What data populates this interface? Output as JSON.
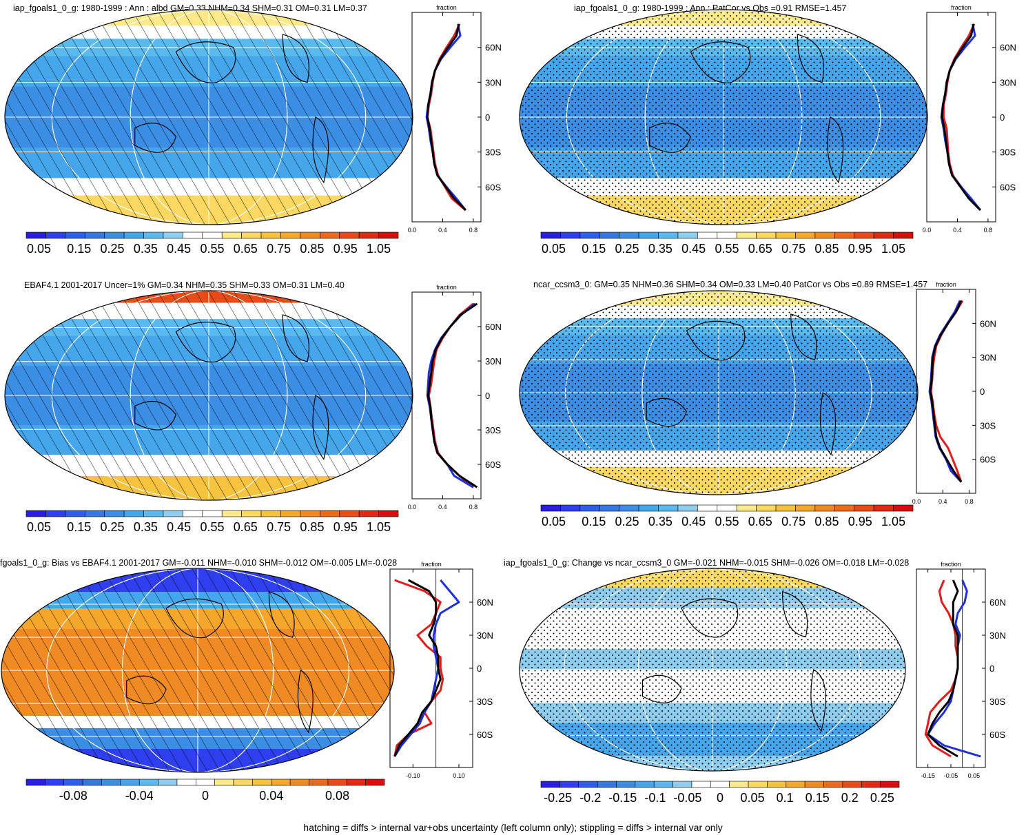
{
  "footnote": "hatching = diffs > internal var+obs uncertainty (left column only); stippling = diffs > internal var only",
  "colors": {
    "abs_scale": [
      "#2a1fe0",
      "#2f3ff0",
      "#2f5fe8",
      "#3677e0",
      "#3b8ee4",
      "#46a6ec",
      "#5ab9ee",
      "#8fcdee",
      "#ffffff",
      "#ffffff",
      "#fde98a",
      "#fbd861",
      "#f6c33f",
      "#f4a72b",
      "#f08a22",
      "#eb6a1c",
      "#e84a18",
      "#e02a14",
      "#d4100f"
    ],
    "diff_scale": [
      "#2a1fe0",
      "#2f3ff0",
      "#2f5fe8",
      "#3677e0",
      "#3b8ee4",
      "#46a6ec",
      "#5ab9ee",
      "#8fcdee",
      "#ffffff",
      "#ffffff",
      "#fde98a",
      "#fbd861",
      "#f6c33f",
      "#f4a72b",
      "#f08a22",
      "#eb6a1c",
      "#e84a18",
      "#e02a14",
      "#d4100f"
    ],
    "line_red": "#e41a1c",
    "line_blue": "#1f2fe0",
    "line_black": "#000000"
  },
  "chart_data": [
    {
      "type": "heatmap",
      "panel": "top-left",
      "title": "iap_fgoals1_0_g: 1980-1999 : Ann : albd GM=0.33 NHM=0.34 SHM=0.31 OM=0.31 LM=0.37",
      "overlay": "hatching",
      "colorbar_ticks": [
        "0.05",
        "0.15",
        "0.25",
        "0.35",
        "0.45",
        "0.55",
        "0.65",
        "0.75",
        "0.85",
        "0.95",
        "1.05"
      ],
      "zonal": {
        "header": "fraction",
        "xticks": [
          "0.0",
          "0.4",
          "0.8"
        ],
        "xlim": [
          0,
          0.9
        ],
        "yticks": [
          "60N",
          "30N",
          "0",
          "30S",
          "60S"
        ],
        "series": [
          {
            "color": "red",
            "lat": [
              80,
              70,
              60,
              50,
              40,
              30,
              20,
              10,
              0,
              -10,
              -20,
              -30,
              -40,
              -50,
              -60,
              -70,
              -80
            ],
            "values": [
              0.62,
              0.55,
              0.45,
              0.36,
              0.3,
              0.27,
              0.25,
              0.22,
              0.2,
              0.24,
              0.26,
              0.28,
              0.3,
              0.34,
              0.43,
              0.52,
              0.7
            ]
          },
          {
            "color": "blue",
            "lat": [
              80,
              70,
              60,
              50,
              40,
              30,
              20,
              10,
              0,
              -10,
              -20,
              -30,
              -40,
              -50,
              -60,
              -70,
              -80
            ],
            "values": [
              0.6,
              0.63,
              0.5,
              0.38,
              0.3,
              0.26,
              0.24,
              0.21,
              0.19,
              0.22,
              0.24,
              0.27,
              0.29,
              0.33,
              0.45,
              0.58,
              0.7
            ]
          },
          {
            "color": "black",
            "lat": [
              80,
              70,
              60,
              50,
              40,
              30,
              20,
              10,
              0,
              -10,
              -20,
              -30,
              -40,
              -50,
              -60,
              -70,
              -80
            ],
            "values": [
              0.61,
              0.58,
              0.47,
              0.37,
              0.3,
              0.26,
              0.24,
              0.21,
              0.2,
              0.23,
              0.25,
              0.27,
              0.29,
              0.33,
              0.44,
              0.55,
              0.7
            ]
          }
        ]
      }
    },
    {
      "type": "heatmap",
      "panel": "top-right",
      "title": "iap_fgoals1_0_g: 1980-1999 : Ann : PatCor vs Obs =0.91 RMSE=1.457",
      "overlay": "stippling",
      "colorbar_ticks": [
        "0.05",
        "0.15",
        "0.25",
        "0.35",
        "0.45",
        "0.55",
        "0.65",
        "0.75",
        "0.85",
        "0.95",
        "1.05"
      ],
      "zonal": {
        "header": "fraction",
        "xticks": [
          "0.0",
          "0.4",
          "0.8"
        ],
        "xlim": [
          0,
          0.9
        ],
        "yticks": [
          "60N",
          "30N",
          "0",
          "30S",
          "60S"
        ],
        "series": [
          {
            "color": "red",
            "lat": [
              80,
              70,
              60,
              50,
              40,
              30,
              20,
              10,
              0,
              -10,
              -20,
              -30,
              -40,
              -50,
              -60,
              -70,
              -80
            ],
            "values": [
              0.62,
              0.55,
              0.45,
              0.36,
              0.3,
              0.27,
              0.25,
              0.22,
              0.22,
              0.26,
              0.27,
              0.28,
              0.3,
              0.34,
              0.45,
              0.55,
              0.7
            ]
          },
          {
            "color": "blue",
            "lat": [
              80,
              70,
              60,
              50,
              40,
              30,
              20,
              10,
              0,
              -10,
              -20,
              -30,
              -40,
              -50,
              -60,
              -70,
              -80
            ],
            "values": [
              0.6,
              0.63,
              0.5,
              0.38,
              0.3,
              0.26,
              0.24,
              0.21,
              0.19,
              0.22,
              0.24,
              0.27,
              0.29,
              0.33,
              0.45,
              0.58,
              0.7
            ]
          },
          {
            "color": "black",
            "lat": [
              80,
              70,
              60,
              50,
              40,
              30,
              20,
              10,
              0,
              -10,
              -20,
              -30,
              -40,
              -50,
              -60,
              -70,
              -80
            ],
            "values": [
              0.61,
              0.58,
              0.47,
              0.37,
              0.3,
              0.26,
              0.24,
              0.21,
              0.2,
              0.23,
              0.25,
              0.27,
              0.29,
              0.33,
              0.44,
              0.55,
              0.7
            ]
          }
        ]
      }
    },
    {
      "type": "heatmap",
      "panel": "middle-left",
      "title": "EBAF4.1 2001-2017 Uncer=1% GM=0.34 NHM=0.35 SHM=0.33 OM=0.31 LM=0.40",
      "overlay": "hatching",
      "colorbar_ticks": [
        "0.05",
        "0.15",
        "0.25",
        "0.35",
        "0.45",
        "0.55",
        "0.65",
        "0.75",
        "0.85",
        "0.95",
        "1.05"
      ],
      "zonal": {
        "header": "fraction",
        "xticks": [
          "0.0",
          "0.4",
          "0.8"
        ],
        "xlim": [
          0,
          0.9
        ],
        "yticks": [
          "60N",
          "30N",
          "0",
          "30S",
          "60S"
        ],
        "series": [
          {
            "color": "red",
            "lat": [
              80,
              70,
              60,
              50,
              40,
              30,
              20,
              10,
              0,
              -10,
              -20,
              -30,
              -40,
              -50,
              -60,
              -70,
              -80
            ],
            "values": [
              0.8,
              0.62,
              0.5,
              0.4,
              0.32,
              0.29,
              0.27,
              0.25,
              0.22,
              0.24,
              0.26,
              0.28,
              0.3,
              0.34,
              0.46,
              0.62,
              0.8
            ]
          },
          {
            "color": "blue",
            "lat": [
              80,
              70,
              60,
              50,
              40,
              30,
              20,
              10,
              0,
              -10,
              -20,
              -30,
              -40,
              -50,
              -60,
              -70,
              -80
            ],
            "values": [
              0.82,
              0.64,
              0.5,
              0.38,
              0.3,
              0.25,
              0.22,
              0.21,
              0.2,
              0.23,
              0.25,
              0.27,
              0.29,
              0.33,
              0.46,
              0.55,
              0.8
            ]
          },
          {
            "color": "black",
            "lat": [
              80,
              70,
              60,
              50,
              40,
              30,
              20,
              10,
              0,
              -10,
              -20,
              -30,
              -40,
              -50,
              -60,
              -70,
              -80
            ],
            "values": [
              0.85,
              0.63,
              0.5,
              0.39,
              0.31,
              0.27,
              0.25,
              0.23,
              0.21,
              0.24,
              0.25,
              0.27,
              0.29,
              0.33,
              0.46,
              0.62,
              0.85
            ]
          }
        ]
      }
    },
    {
      "type": "heatmap",
      "panel": "middle-right",
      "title": "ncar_ccsm3_0: GM=0.35 NHM=0.36 SHM=0.34 OM=0.33 LM=0.40 PatCor vs Obs =0.89 RMSE=1.457",
      "overlay": "stippling",
      "colorbar_ticks": [
        "0.05",
        "0.15",
        "0.25",
        "0.35",
        "0.45",
        "0.55",
        "0.65",
        "0.75",
        "0.85",
        "0.95",
        "1.05"
      ],
      "zonal": {
        "header": "fraction",
        "xticks": [
          "0.0",
          "0.4",
          "0.8"
        ],
        "xlim": [
          0,
          0.9
        ],
        "yticks": [
          "60N",
          "30N",
          "0",
          "30S",
          "60S"
        ],
        "series": [
          {
            "color": "red",
            "lat": [
              80,
              70,
              60,
              50,
              40,
              30,
              20,
              10,
              0,
              -10,
              -20,
              -30,
              -40,
              -50,
              -60,
              -70,
              -80
            ],
            "values": [
              0.7,
              0.6,
              0.48,
              0.38,
              0.3,
              0.27,
              0.25,
              0.24,
              0.22,
              0.25,
              0.27,
              0.3,
              0.36,
              0.48,
              0.55,
              0.62,
              0.68
            ]
          },
          {
            "color": "blue",
            "lat": [
              80,
              70,
              60,
              50,
              40,
              30,
              20,
              10,
              0,
              -10,
              -20,
              -30,
              -40,
              -50,
              -60,
              -70,
              -80
            ],
            "values": [
              0.66,
              0.58,
              0.47,
              0.36,
              0.28,
              0.24,
              0.23,
              0.22,
              0.2,
              0.23,
              0.25,
              0.27,
              0.29,
              0.35,
              0.45,
              0.52,
              0.68
            ]
          },
          {
            "color": "black",
            "lat": [
              80,
              70,
              60,
              50,
              40,
              30,
              20,
              10,
              0,
              -10,
              -20,
              -30,
              -40,
              -50,
              -60,
              -70,
              -80
            ],
            "values": [
              0.68,
              0.6,
              0.48,
              0.37,
              0.29,
              0.25,
              0.24,
              0.23,
              0.21,
              0.24,
              0.26,
              0.28,
              0.3,
              0.36,
              0.46,
              0.56,
              0.68
            ]
          }
        ]
      }
    },
    {
      "type": "heatmap",
      "panel": "bottom-left",
      "title": "fgoals1_0_g: Bias vs EBAF4.1 2001-2017 GM=-0.011 NHM=-0.010 SHM=-0.012 OM=-0.005 LM=-0.028",
      "overlay": "hatching",
      "colorbar_ticks": [
        "-0.08",
        "-0.04",
        "0",
        "0.04",
        "0.08"
      ],
      "zonal": {
        "header": "fraction",
        "xticks": [
          "-0.10",
          "0.10"
        ],
        "xlim": [
          -0.2,
          0.16
        ],
        "yticks": [
          "60N",
          "30N",
          "0",
          "30S",
          "60S"
        ],
        "series": [
          {
            "color": "red",
            "lat": [
              80,
              70,
              60,
              50,
              40,
              30,
              20,
              10,
              0,
              -10,
              -20,
              -30,
              -40,
              -50,
              -60,
              -70,
              -80
            ],
            "values": [
              -0.18,
              -0.05,
              0.02,
              0.0,
              -0.02,
              -0.08,
              -0.04,
              0.02,
              0.02,
              0.03,
              0.02,
              -0.02,
              -0.05,
              -0.02,
              -0.12,
              -0.17,
              -0.18
            ]
          },
          {
            "color": "blue",
            "lat": [
              80,
              70,
              60,
              50,
              40,
              30,
              20,
              10,
              0,
              -10,
              -20,
              -30,
              -40,
              -50,
              -60,
              -70,
              -80
            ],
            "values": [
              0.02,
              0.06,
              0.1,
              0.02,
              0.0,
              -0.01,
              -0.01,
              0.0,
              0.01,
              0.0,
              -0.01,
              -0.02,
              -0.05,
              -0.07,
              -0.11,
              -0.15,
              -0.18
            ]
          },
          {
            "color": "black",
            "lat": [
              80,
              70,
              60,
              50,
              40,
              30,
              20,
              10,
              0,
              -10,
              -20,
              -30,
              -40,
              -50,
              -60,
              -70,
              -80
            ],
            "values": [
              -0.12,
              -0.03,
              0.0,
              0.0,
              -0.01,
              -0.03,
              0.0,
              0.01,
              0.01,
              0.02,
              0.0,
              -0.02,
              -0.06,
              -0.08,
              -0.12,
              -0.16,
              -0.18
            ]
          }
        ]
      }
    },
    {
      "type": "heatmap",
      "panel": "bottom-right",
      "title": "iap_fgoals1_0_g: Change vs ncar_ccsm3_0 GM=-0.021 NHM=-0.015 SHM=-0.026 OM=-0.018 LM=-0.028",
      "overlay": "stippling",
      "colorbar_ticks": [
        "-0.25",
        "-0.2",
        "-0.15",
        "-0.1",
        "-0.05",
        "0",
        "0.05",
        "0.1",
        "0.15",
        "0.2",
        "0.25"
      ],
      "zonal": {
        "header": "fraction",
        "xticks": [
          "-0.15",
          "-0.05",
          "0.05"
        ],
        "xlim": [
          -0.2,
          0.1
        ],
        "yticks": [
          "60N",
          "30N",
          "0",
          "30S",
          "60S"
        ],
        "series": [
          {
            "color": "red",
            "lat": [
              80,
              70,
              60,
              50,
              40,
              30,
              20,
              10,
              0,
              -10,
              -20,
              -30,
              -40,
              -50,
              -60,
              -70,
              -80
            ],
            "values": [
              -0.08,
              -0.1,
              -0.09,
              -0.06,
              -0.04,
              -0.03,
              -0.03,
              -0.02,
              -0.02,
              -0.03,
              -0.05,
              -0.1,
              -0.14,
              -0.15,
              -0.16,
              -0.13,
              -0.05
            ]
          },
          {
            "color": "blue",
            "lat": [
              80,
              70,
              60,
              50,
              40,
              30,
              20,
              10,
              0,
              -10,
              -20,
              -30,
              -40,
              -50,
              -60,
              -70,
              -80
            ],
            "values": [
              0.0,
              0.02,
              0.01,
              -0.02,
              -0.03,
              -0.01,
              -0.02,
              -0.02,
              -0.02,
              -0.03,
              -0.04,
              -0.05,
              -0.08,
              -0.12,
              -0.15,
              -0.08,
              0.08
            ]
          },
          {
            "color": "black",
            "lat": [
              80,
              70,
              60,
              50,
              40,
              30,
              20,
              10,
              0,
              -10,
              -20,
              -30,
              -40,
              -50,
              -60,
              -70,
              -80
            ],
            "values": [
              -0.04,
              -0.02,
              -0.04,
              -0.04,
              -0.04,
              -0.02,
              -0.02,
              -0.02,
              -0.02,
              -0.03,
              -0.04,
              -0.06,
              -0.1,
              -0.13,
              -0.15,
              -0.1,
              -0.02
            ]
          }
        ]
      }
    }
  ]
}
